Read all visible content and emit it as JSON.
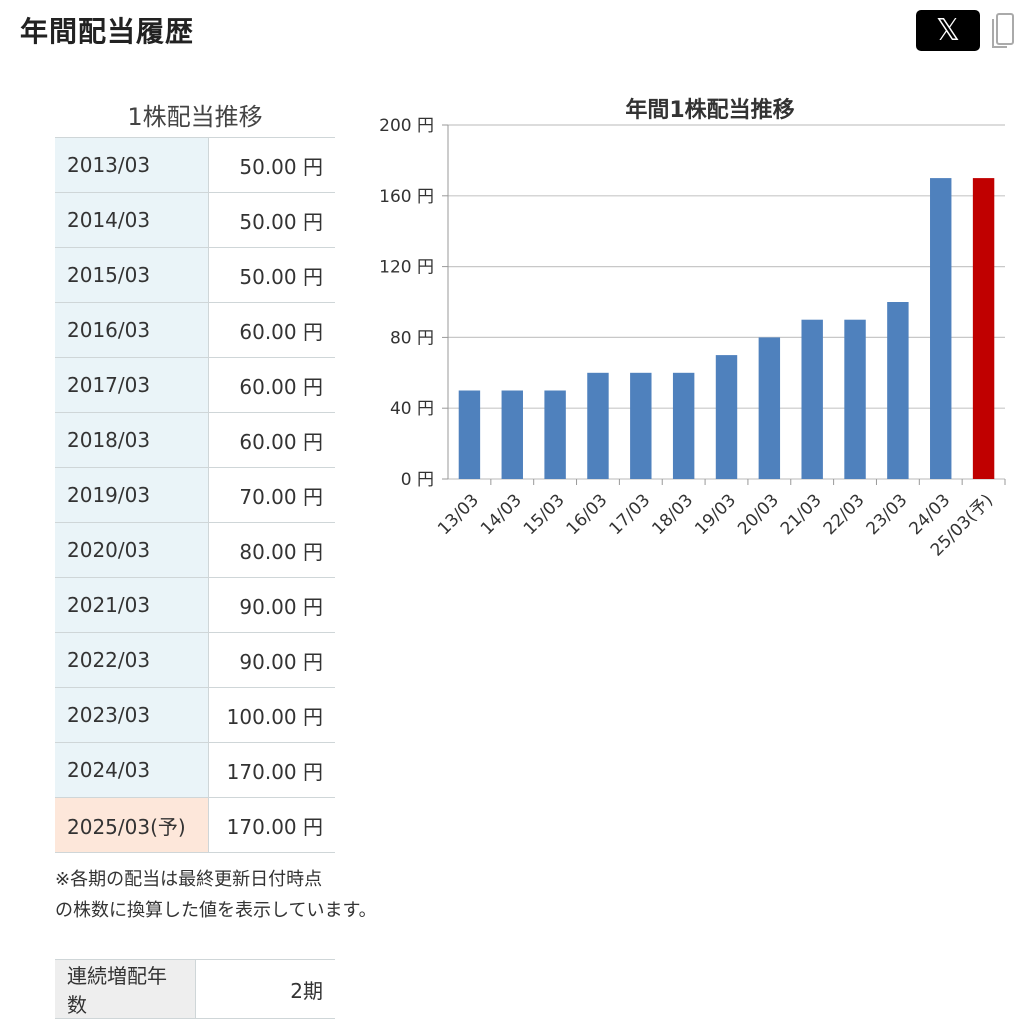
{
  "header": {
    "title": "年間配当履歴",
    "x_label": "𝕏"
  },
  "dividend_table": {
    "title": "1株配当推移",
    "rows": [
      {
        "year": "2013/03",
        "amount": "50.00 円"
      },
      {
        "year": "2014/03",
        "amount": "50.00 円"
      },
      {
        "year": "2015/03",
        "amount": "50.00 円"
      },
      {
        "year": "2016/03",
        "amount": "60.00 円"
      },
      {
        "year": "2017/03",
        "amount": "60.00 円"
      },
      {
        "year": "2018/03",
        "amount": "60.00 円"
      },
      {
        "year": "2019/03",
        "amount": "70.00 円"
      },
      {
        "year": "2020/03",
        "amount": "80.00 円"
      },
      {
        "year": "2021/03",
        "amount": "90.00 円"
      },
      {
        "year": "2022/03",
        "amount": "90.00 円"
      },
      {
        "year": "2023/03",
        "amount": "100.00 円"
      },
      {
        "year": "2024/03",
        "amount": "170.00 円"
      },
      {
        "year": "2025/03(予)",
        "amount": "170.00 円"
      }
    ],
    "note_line1": "※各期の配当は最終更新日付時点",
    "note_line2": "の株数に換算した値を表示しています。"
  },
  "streak": {
    "label": "連続増配年数",
    "value": "2期"
  },
  "colors": {
    "bar": "#4f81bd",
    "forecast_bar": "#c00000",
    "grid": "#c8c8c8"
  },
  "chart_data": {
    "type": "bar",
    "title": "年間1株配当推移",
    "categories": [
      "13/03",
      "14/03",
      "15/03",
      "16/03",
      "17/03",
      "18/03",
      "19/03",
      "20/03",
      "21/03",
      "22/03",
      "23/03",
      "24/03",
      "25/03(予)"
    ],
    "values": [
      50,
      50,
      50,
      60,
      60,
      60,
      70,
      80,
      90,
      90,
      100,
      170,
      170
    ],
    "forecast_index": 12,
    "ylim": [
      0,
      200
    ],
    "yticks": [
      0,
      40,
      80,
      120,
      160,
      200
    ],
    "ytick_labels": [
      "0 円",
      "40 円",
      "80 円",
      "120 円",
      "160 円",
      "200 円"
    ],
    "grid": true,
    "legend": "none"
  }
}
